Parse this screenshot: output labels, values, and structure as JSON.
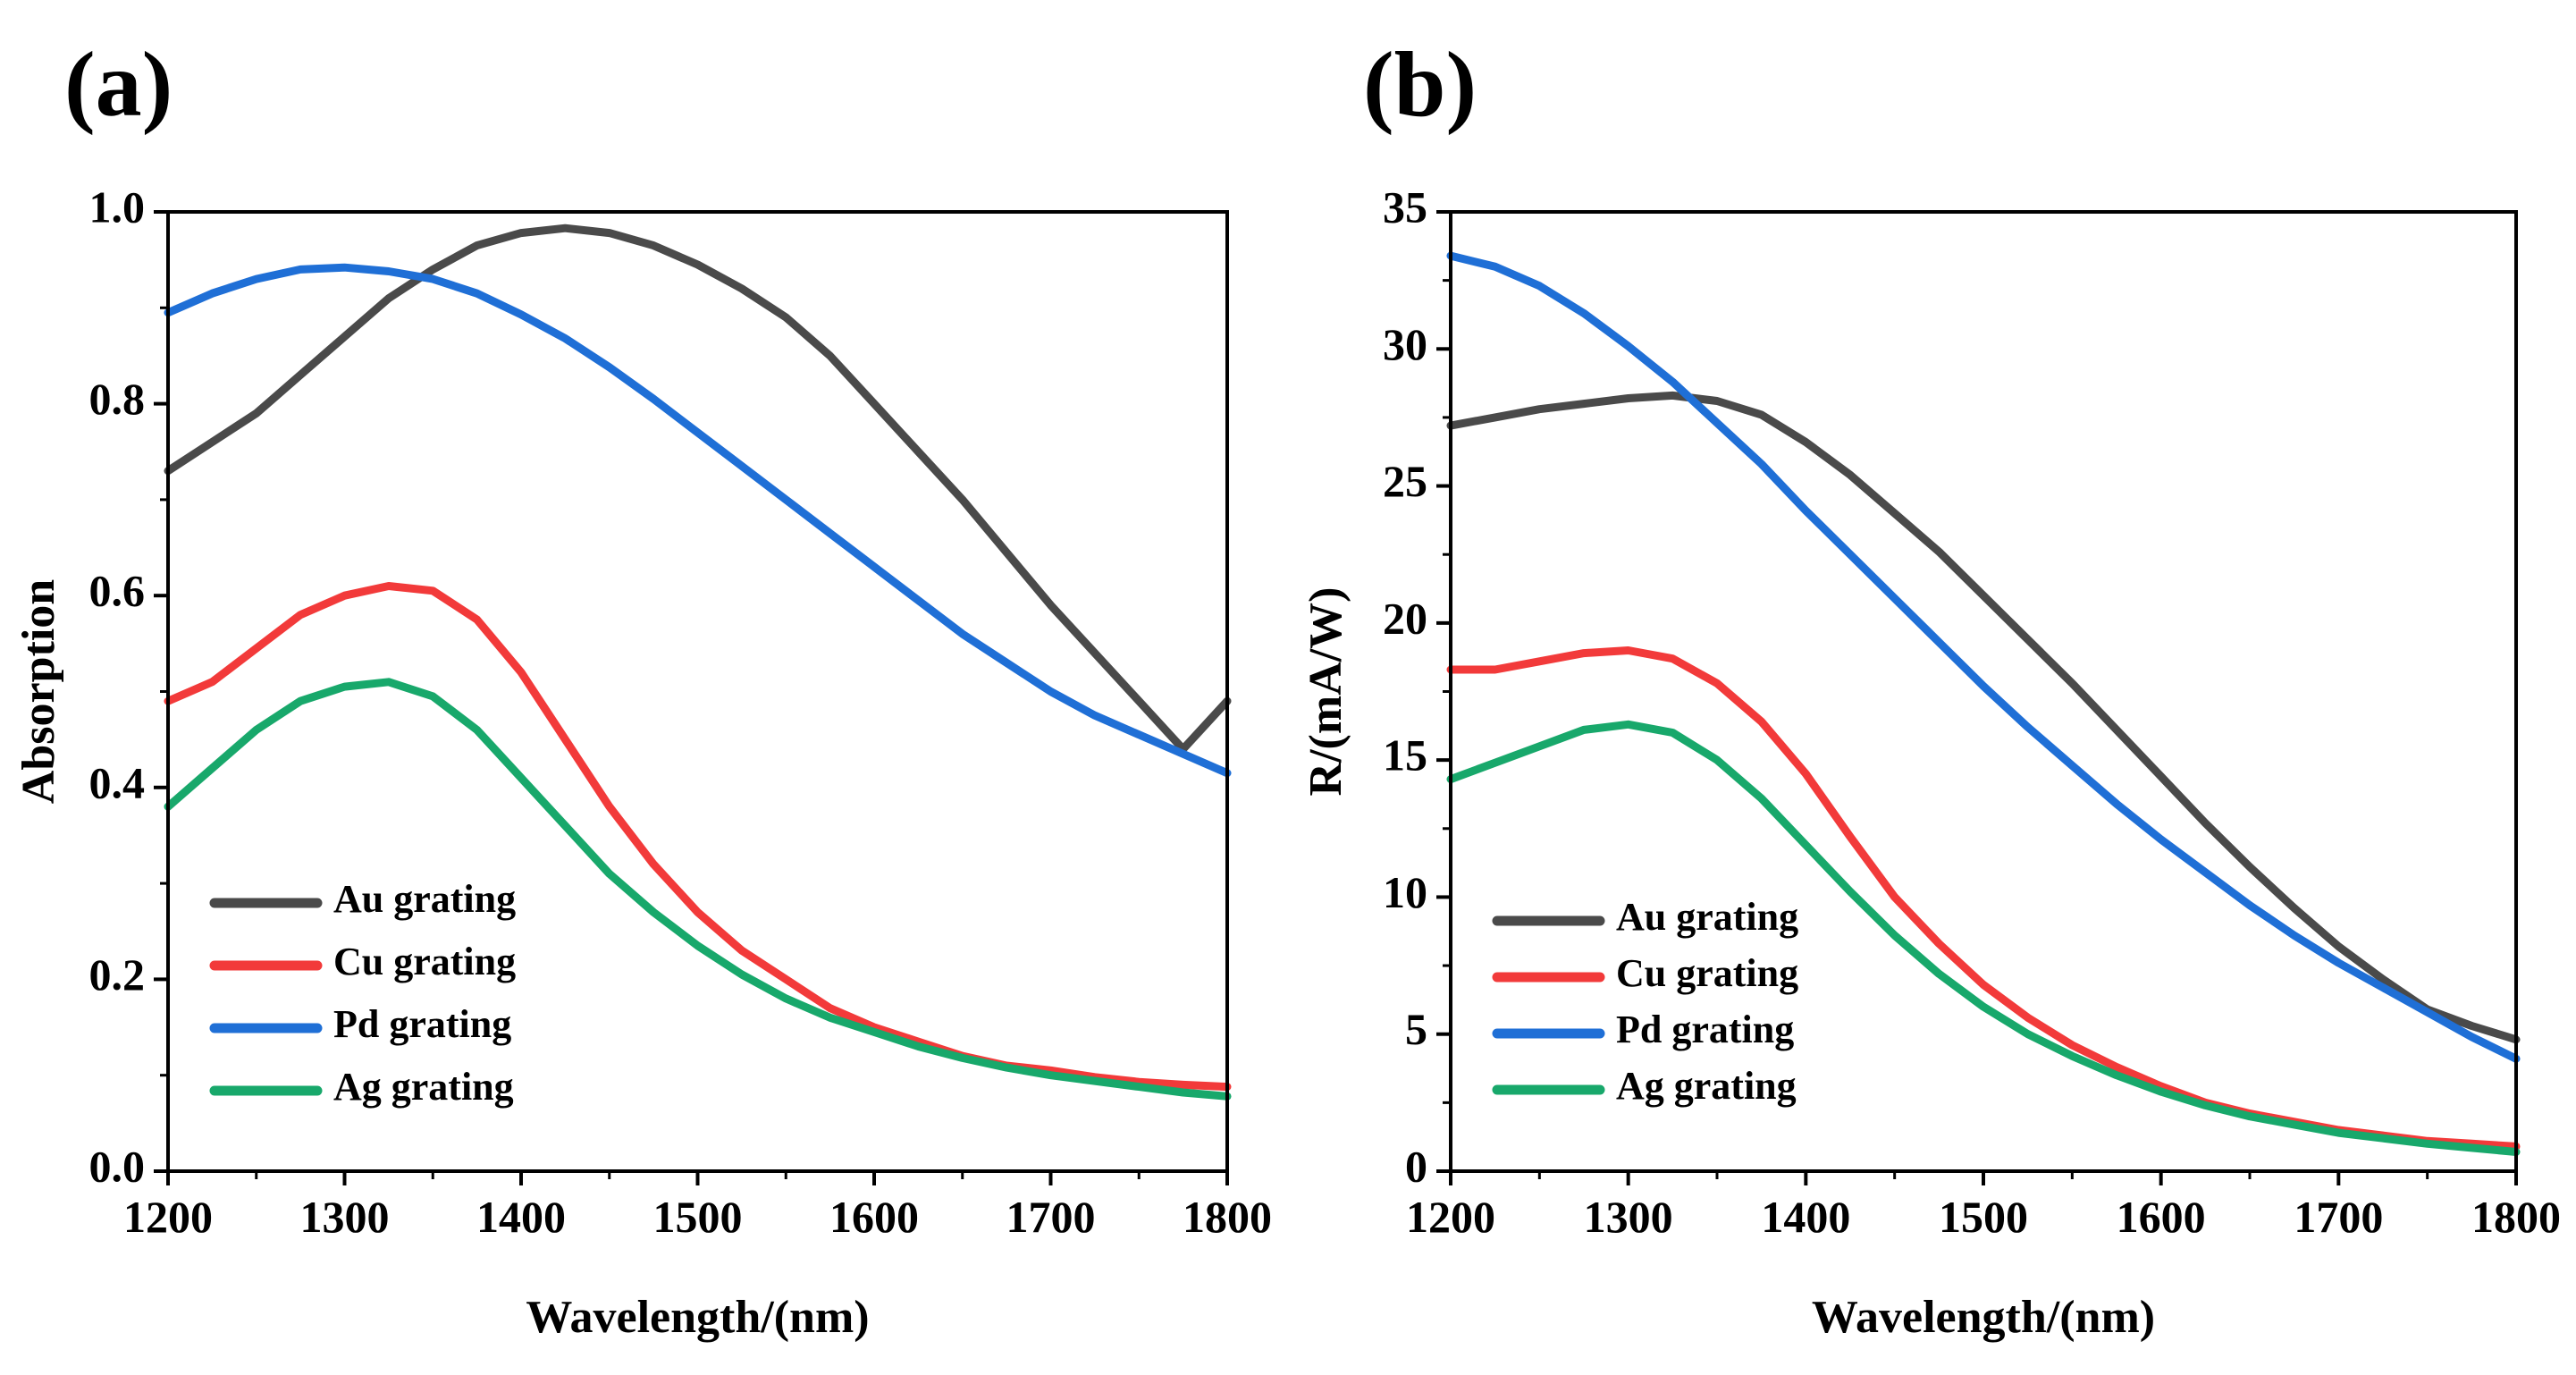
{
  "chart_data": [
    {
      "panel": "(a)",
      "type": "line",
      "xlabel": "Wavelength/(nm)",
      "ylabel": "Absorption",
      "xlim": [
        1200,
        1800
      ],
      "ylim": [
        0,
        1.0
      ],
      "xticks": [
        1200,
        1300,
        1400,
        1500,
        1600,
        1700,
        1800
      ],
      "xtick_labels": [
        "1200",
        "1300",
        "1400",
        "1500",
        "1600",
        "1700",
        "1800"
      ],
      "yticks": [
        0,
        0.2,
        0.4,
        0.6,
        0.8,
        1.0
      ],
      "ytick_labels": [
        "0.0",
        "0.2",
        "0.4",
        "0.6",
        "0.8",
        "1.0"
      ],
      "legend_position": "bottom-left",
      "x": [
        1200,
        1225,
        1250,
        1275,
        1300,
        1325,
        1350,
        1375,
        1400,
        1425,
        1450,
        1475,
        1500,
        1525,
        1550,
        1575,
        1600,
        1625,
        1650,
        1675,
        1700,
        1725,
        1750,
        1775,
        1800
      ],
      "series": [
        {
          "name": "Au grating",
          "color": "#4a4a4a",
          "values": [
            0.73,
            0.76,
            0.79,
            0.83,
            0.87,
            0.91,
            0.94,
            0.965,
            0.978,
            0.983,
            0.978,
            0.965,
            0.945,
            0.92,
            0.89,
            0.85,
            0.8,
            0.75,
            0.7,
            0.645,
            0.59,
            0.54,
            0.49,
            0.44,
            0.49
          ]
        },
        {
          "name": "Cu grating",
          "color": "#f23a3a",
          "values": [
            0.49,
            0.51,
            0.545,
            0.58,
            0.6,
            0.61,
            0.605,
            0.575,
            0.52,
            0.45,
            0.38,
            0.32,
            0.27,
            0.23,
            0.2,
            0.17,
            0.15,
            0.135,
            0.12,
            0.11,
            0.105,
            0.098,
            0.093,
            0.09,
            0.088
          ]
        },
        {
          "name": "Pd grating",
          "color": "#1f6fd6",
          "values": [
            0.895,
            0.915,
            0.93,
            0.94,
            0.942,
            0.938,
            0.93,
            0.915,
            0.893,
            0.868,
            0.838,
            0.805,
            0.77,
            0.735,
            0.7,
            0.665,
            0.63,
            0.595,
            0.56,
            0.53,
            0.5,
            0.475,
            0.455,
            0.435,
            0.415
          ]
        },
        {
          "name": "Ag grating",
          "color": "#18a86b",
          "values": [
            0.38,
            0.42,
            0.46,
            0.49,
            0.505,
            0.51,
            0.495,
            0.46,
            0.41,
            0.36,
            0.31,
            0.27,
            0.235,
            0.205,
            0.18,
            0.16,
            0.145,
            0.13,
            0.118,
            0.108,
            0.1,
            0.094,
            0.088,
            0.082,
            0.078
          ]
        }
      ]
    },
    {
      "panel": "(b)",
      "type": "line",
      "xlabel": "Wavelength/(nm)",
      "ylabel": "R/(mA/W)",
      "xlim": [
        1200,
        1800
      ],
      "ylim": [
        0,
        35
      ],
      "xticks": [
        1200,
        1300,
        1400,
        1500,
        1600,
        1700,
        1800
      ],
      "xtick_labels": [
        "1200",
        "1300",
        "1400",
        "1500",
        "1600",
        "1700",
        "1800"
      ],
      "yticks": [
        0,
        5,
        10,
        15,
        20,
        25,
        30,
        35
      ],
      "ytick_labels": [
        "0",
        "5",
        "10",
        "15",
        "20",
        "25",
        "30",
        "35"
      ],
      "legend_position": "bottom-left",
      "x": [
        1200,
        1225,
        1250,
        1275,
        1300,
        1325,
        1350,
        1375,
        1400,
        1425,
        1450,
        1475,
        1500,
        1525,
        1550,
        1575,
        1600,
        1625,
        1650,
        1675,
        1700,
        1725,
        1750,
        1775,
        1800
      ],
      "series": [
        {
          "name": "Au grating",
          "color": "#4a4a4a",
          "values": [
            27.2,
            27.5,
            27.8,
            28.0,
            28.2,
            28.3,
            28.1,
            27.6,
            26.6,
            25.4,
            24.0,
            22.6,
            21.0,
            19.4,
            17.8,
            16.1,
            14.4,
            12.7,
            11.1,
            9.6,
            8.2,
            7.0,
            5.9,
            5.3,
            4.8
          ]
        },
        {
          "name": "Cu grating",
          "color": "#f23a3a",
          "values": [
            18.3,
            18.3,
            18.6,
            18.9,
            19.0,
            18.7,
            17.8,
            16.4,
            14.5,
            12.2,
            10.0,
            8.3,
            6.8,
            5.6,
            4.6,
            3.8,
            3.1,
            2.5,
            2.1,
            1.8,
            1.5,
            1.3,
            1.1,
            1.0,
            0.9
          ]
        },
        {
          "name": "Pd grating",
          "color": "#1f6fd6",
          "values": [
            33.4,
            33.0,
            32.3,
            31.3,
            30.1,
            28.8,
            27.3,
            25.8,
            24.1,
            22.5,
            20.9,
            19.3,
            17.7,
            16.2,
            14.8,
            13.4,
            12.1,
            10.9,
            9.7,
            8.6,
            7.6,
            6.7,
            5.8,
            4.9,
            4.1
          ]
        },
        {
          "name": "Ag grating",
          "color": "#18a86b",
          "values": [
            14.3,
            14.9,
            15.5,
            16.1,
            16.3,
            16.0,
            15.0,
            13.6,
            11.9,
            10.2,
            8.6,
            7.2,
            6.0,
            5.0,
            4.2,
            3.5,
            2.9,
            2.4,
            2.0,
            1.7,
            1.4,
            1.2,
            1.0,
            0.85,
            0.7
          ]
        }
      ]
    }
  ]
}
